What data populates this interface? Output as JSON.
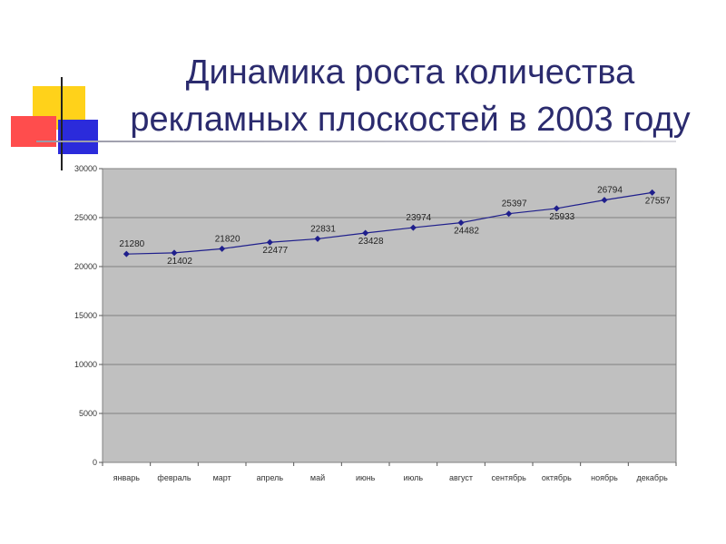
{
  "slide": {
    "title_line1": "Динамика роста количества",
    "title_line2": "рекламных плоскостей в 2003 году"
  },
  "colors": {
    "title": "#2b2b6e",
    "plot_background": "#c0c0c0",
    "series_line": "#1f1f8c",
    "gridline": "#808080",
    "deco_yellow": "#ffd21a",
    "deco_red": "#ff4d4d",
    "deco_blue": "#2b2bdb"
  },
  "chart_data": {
    "type": "line",
    "categories": [
      "январь",
      "февраль",
      "март",
      "апрель",
      "май",
      "июнь",
      "июль",
      "август",
      "сентябрь",
      "октябрь",
      "ноябрь",
      "декабрь"
    ],
    "series": [
      {
        "values": [
          21280,
          21402,
          21820,
          22477,
          22831,
          23428,
          23974,
          24482,
          25397,
          25933,
          26794,
          27557
        ]
      }
    ],
    "ylim": [
      0,
      30000
    ],
    "yticks": [
      0,
      5000,
      10000,
      15000,
      20000,
      25000,
      30000
    ],
    "grid": true,
    "legend": false,
    "data_labels": true,
    "marker": "diamond"
  }
}
